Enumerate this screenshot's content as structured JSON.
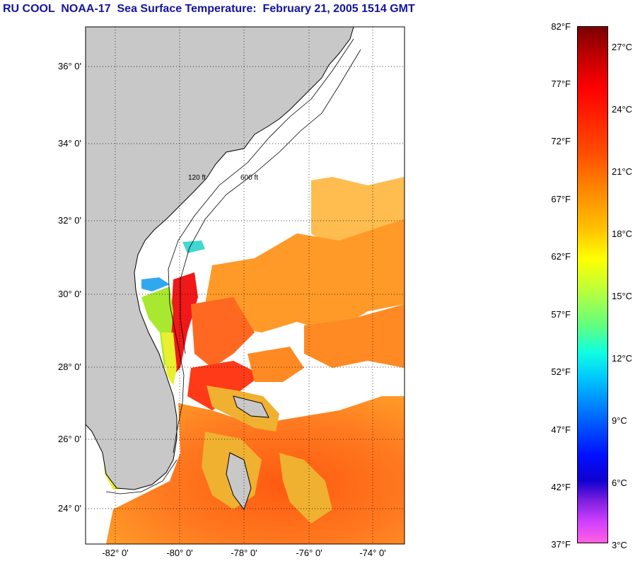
{
  "title": "RU COOL  NOAA-17  Sea Surface Temperature:  February 21, 2005 1514 GMT",
  "map": {
    "latitude_labels": [
      "36° 0'",
      "34° 0'",
      "32° 0'",
      "30° 0'",
      "28° 0'",
      "26° 0'",
      "24° 0'"
    ],
    "longitude_labels": [
      "-82° 0'",
      "-80° 0'",
      "-78° 0'",
      "-76° 0'",
      "-74° 0'"
    ],
    "contour_labels": [
      "120 ft",
      "600 ft"
    ],
    "colors": {
      "land": "#c8c8c8",
      "cloud": "#ffffff",
      "frame": "#000000"
    }
  },
  "colorbar": {
    "fahrenheit_labels": [
      "82°F",
      "77°F",
      "72°F",
      "67°F",
      "62°F",
      "57°F",
      "52°F",
      "47°F",
      "42°F",
      "37°F"
    ],
    "celsius_labels": [
      "27°C",
      "24°C",
      "21°C",
      "18°C",
      "15°C",
      "12°C",
      "9°C",
      "6°C",
      "3°C"
    ]
  }
}
